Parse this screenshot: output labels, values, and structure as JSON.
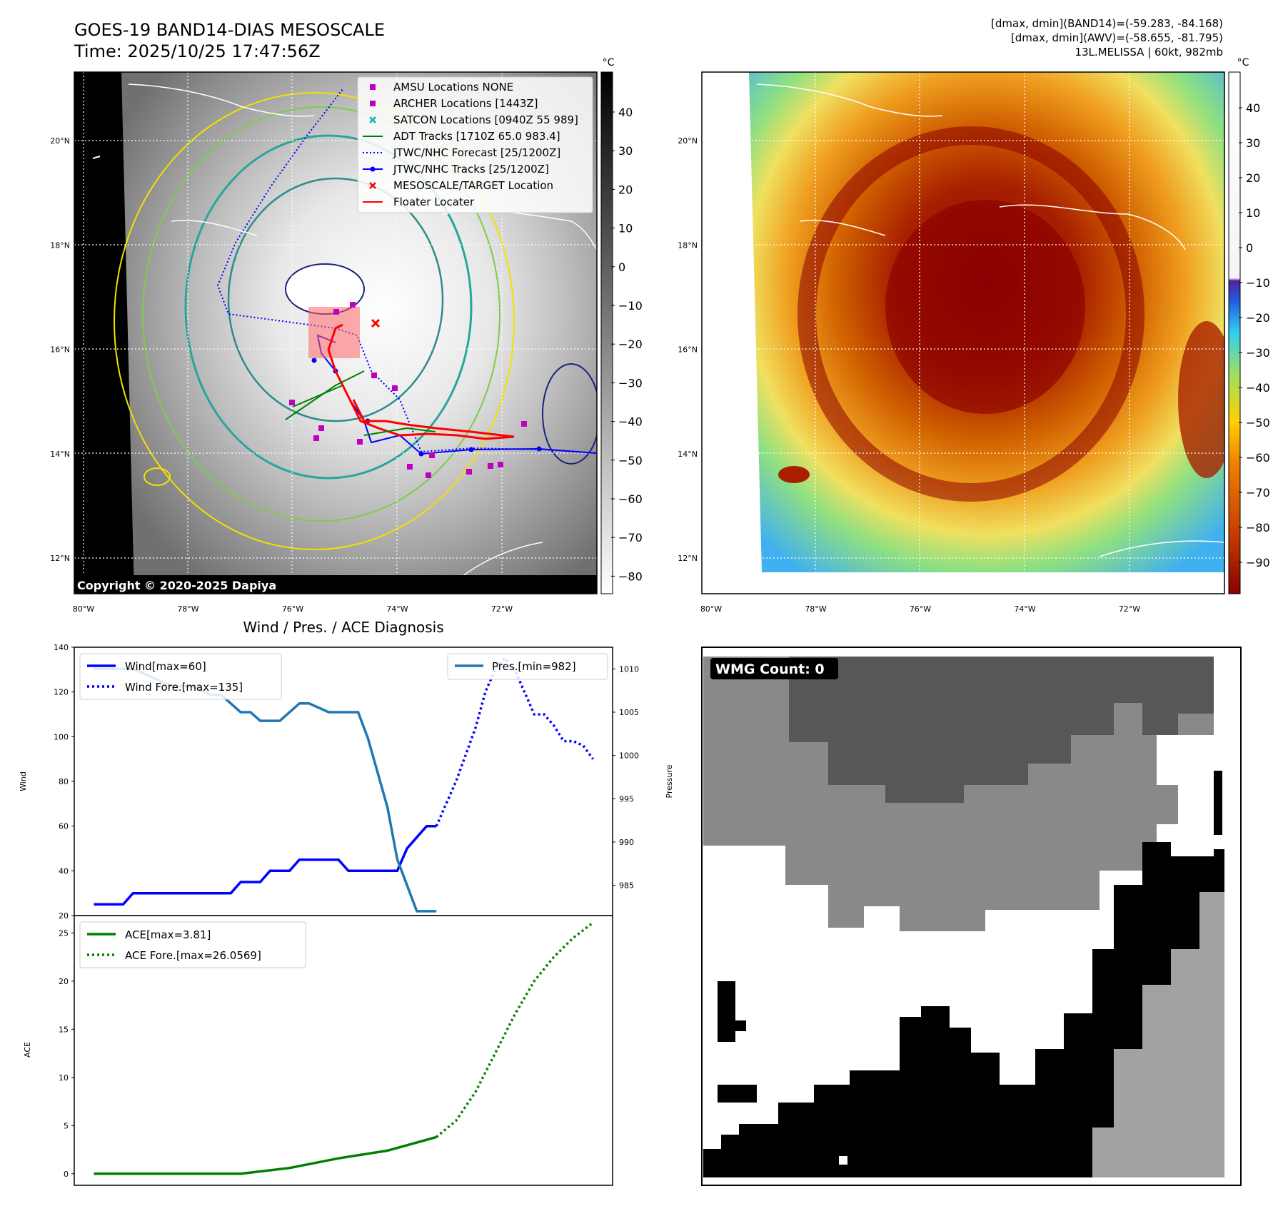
{
  "header": {
    "title_line1": "GOES-19 BAND14-DIAS MESOSCALE",
    "title_line2": "Time: 2025/10/25 17:47:56Z",
    "stats_line1": "[dmax, dmin](BAND14)=(-59.283, -84.168)",
    "stats_line2": "[dmax, dmin](AWV)=(-58.655, -81.795)",
    "storm_line": "13L.MELISSA | 60kt, 982mb"
  },
  "map_left": {
    "lon_ticks": [
      "80°W",
      "78°W",
      "76°W",
      "74°W",
      "72°W"
    ],
    "lat_ticks": [
      "20°N",
      "18°N",
      "16°N",
      "14°N",
      "12°N"
    ],
    "copyright": "Copyright © 2020-2025 Dapiya",
    "legend": [
      {
        "label": "AMSU Locations NONE",
        "color": "#c000c0",
        "marker": "square"
      },
      {
        "label": "ARCHER Locations [1443Z]",
        "color": "#c000c0",
        "marker": "square"
      },
      {
        "label": "SATCON Locations [0940Z 55 989]",
        "color": "#10b0b0",
        "marker": "x"
      },
      {
        "label": "ADT Tracks [1710Z 65.0 983.4]",
        "color": "#008000",
        "marker": "line"
      },
      {
        "label": "JTWC/NHC Forecast [25/1200Z]",
        "color": "#0000ff",
        "marker": "dotted"
      },
      {
        "label": "JTWC/NHC Tracks [25/1200Z]",
        "color": "#0000ff",
        "marker": "line-dot"
      },
      {
        "label": "MESOSCALE/TARGET Location",
        "color": "#ff0000",
        "marker": "x"
      },
      {
        "label": "Floater Locater",
        "color": "#ff0000",
        "marker": "line"
      }
    ]
  },
  "colorbar_left": {
    "unit": "°C",
    "ticks": [
      "40",
      "30",
      "20",
      "10",
      "0",
      "−10",
      "−20",
      "−30",
      "−40",
      "−50",
      "−60",
      "−70",
      "−80"
    ]
  },
  "map_right": {
    "lon_ticks": [
      "80°W",
      "78°W",
      "76°W",
      "74°W",
      "72°W"
    ],
    "lat_ticks": [
      "20°N",
      "18°N",
      "16°N",
      "14°N",
      "12°N"
    ]
  },
  "colorbar_right": {
    "unit": "°C",
    "ticks": [
      "40",
      "30",
      "20",
      "10",
      "0",
      "−10",
      "−20",
      "−30",
      "−40",
      "−50",
      "−60",
      "−70",
      "−80",
      "−90"
    ]
  },
  "wmg_panel": {
    "label": "WMG Count: 0"
  },
  "chart_data": [
    {
      "type": "line",
      "title": "Wind / Pres. / ACE Diagnosis",
      "ylabel": "Wind",
      "ylabel_right": "Pressure",
      "ylim": [
        20,
        140
      ],
      "ylim_right": [
        981.5,
        1012.5
      ],
      "yticks": [
        20,
        40,
        60,
        80,
        100,
        120,
        140
      ],
      "yticks_right": [
        985,
        990,
        995,
        1000,
        1005,
        1010
      ],
      "xlim": [
        -2,
        53
      ],
      "series": [
        {
          "name": "Wind[max=60]",
          "color": "#0000ff",
          "style": "solid",
          "axis": "left",
          "x": [
            0,
            3,
            4,
            14,
            15,
            17,
            18,
            20,
            21,
            25,
            26,
            31,
            32,
            33,
            34,
            35
          ],
          "values": [
            25,
            25,
            30,
            30,
            35,
            35,
            40,
            40,
            45,
            45,
            40,
            40,
            50,
            55,
            60,
            60
          ]
        },
        {
          "name": "Wind Fore.[max=135]",
          "color": "#0000ff",
          "style": "dotted",
          "axis": "left",
          "x": [
            35,
            37,
            39,
            40,
            41,
            42,
            43,
            44,
            45,
            46,
            47,
            48,
            49,
            50,
            51
          ],
          "values": [
            60,
            80,
            104,
            120,
            130,
            135,
            130,
            120,
            110,
            110,
            105,
            98,
            98,
            96,
            90
          ]
        },
        {
          "name": "Pres.[min=982]",
          "color": "#1f77b4",
          "style": "solid",
          "axis": "right",
          "x": [
            0,
            2,
            4,
            6,
            8,
            10,
            12,
            13,
            14,
            15,
            16,
            17,
            18,
            19,
            20,
            21,
            22,
            24,
            25,
            26,
            27,
            28,
            29,
            30,
            31,
            32,
            33,
            34,
            35
          ],
          "values": [
            1010,
            1010,
            1010,
            1009,
            1008,
            1008,
            1007,
            1007,
            1006,
            1005,
            1005,
            1004,
            1004,
            1004,
            1005,
            1006,
            1006,
            1005,
            1005,
            1005,
            1005,
            1002,
            998,
            994,
            988,
            985,
            982,
            982,
            982
          ]
        }
      ]
    },
    {
      "type": "line",
      "ylabel": "ACE",
      "ylim": [
        -1.2,
        26.8
      ],
      "yticks": [
        0,
        5,
        10,
        15,
        20,
        25
      ],
      "xlim": [
        -2,
        53
      ],
      "series": [
        {
          "name": "ACE[max=3.81]",
          "color": "#008000",
          "style": "solid",
          "axis": "left",
          "x": [
            0,
            5,
            10,
            15,
            20,
            25,
            30,
            35
          ],
          "values": [
            0,
            0,
            0,
            0,
            0.6,
            1.6,
            2.4,
            3.81
          ]
        },
        {
          "name": "ACE Fore.[max=26.0569]",
          "color": "#008000",
          "style": "dotted",
          "axis": "left",
          "x": [
            35,
            37,
            39,
            41,
            43,
            45,
            47,
            49,
            51
          ],
          "values": [
            3.81,
            5.5,
            8.5,
            12.5,
            16.5,
            20,
            22.5,
            24.5,
            26.05
          ]
        }
      ]
    }
  ]
}
